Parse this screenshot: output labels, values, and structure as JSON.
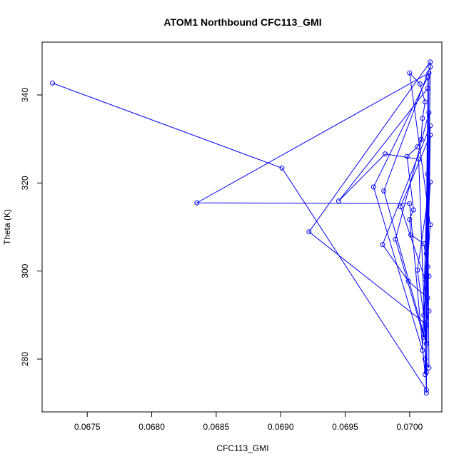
{
  "chart_data": {
    "type": "scatter",
    "title": "ATOM1 Northbound CFC113_GMI",
    "xlabel": "CFC113_GMI",
    "ylabel": "Theta (K)",
    "xlim": [
      0.06715,
      0.07025
    ],
    "ylim": [
      268,
      352
    ],
    "xticks": [
      0.0675,
      0.068,
      0.0685,
      0.069,
      0.0695,
      0.07
    ],
    "xtick_labels": [
      "0.0675",
      "0.0680",
      "0.0685",
      "0.0690",
      "0.0695",
      "0.0700"
    ],
    "yticks": [
      280,
      300,
      320,
      340
    ],
    "ytick_labels": [
      "280",
      "300",
      "320",
      "340"
    ],
    "grid": false,
    "series": [
      {
        "color": "#0000ff",
        "marker": "open-circle",
        "lines": true,
        "points": [
          [
            0.06723,
            342.7
          ],
          [
            0.06901,
            323.4
          ],
          [
            0.07013,
            273.0
          ],
          [
            0.07015,
            345.0
          ],
          [
            0.06835,
            315.5
          ],
          [
            0.07,
            315.3
          ],
          [
            0.07012,
            276.5
          ],
          [
            0.07014,
            341.5
          ],
          [
            0.06945,
            315.9
          ],
          [
            0.06981,
            326.6
          ],
          [
            0.07007,
            325.4
          ],
          [
            0.07013,
            277.0
          ],
          [
            0.07016,
            347.5
          ],
          [
            0.06922,
            308.9
          ],
          [
            0.07012,
            288.1
          ],
          [
            0.07013,
            272.3
          ],
          [
            0.07016,
            346.4
          ],
          [
            0.0698,
            318.2
          ],
          [
            0.07013,
            283.5
          ],
          [
            0.07014,
            344.0
          ],
          [
            0.06972,
            319.1
          ],
          [
            0.0701,
            282.0
          ],
          [
            0.07015,
            336.0
          ],
          [
            0.06989,
            307.2
          ],
          [
            0.07011,
            285.0
          ],
          [
            0.07016,
            333.0
          ],
          [
            0.06979,
            306.0
          ],
          [
            0.06999,
            297.7
          ],
          [
            0.07014,
            293.9
          ],
          [
            0.07016,
            330.9
          ],
          [
            0.06993,
            314.6
          ],
          [
            0.07012,
            298.1
          ],
          [
            0.07016,
            320.2
          ],
          [
            0.07006,
            300.2
          ],
          [
            0.07011,
            290.0
          ],
          [
            0.07016,
            310.5
          ],
          [
            0.07,
            345.0
          ],
          [
            0.07008,
            342.5
          ],
          [
            0.07012,
            338.4
          ],
          [
            0.0701,
            334.7
          ],
          [
            0.07009,
            329.9
          ],
          [
            0.07006,
            328.2
          ],
          [
            0.06998,
            326.0
          ],
          [
            0.07003,
            313.9
          ],
          [
            0.07,
            311.7
          ],
          [
            0.07001,
            308.2
          ],
          [
            0.07011,
            306.2
          ],
          [
            0.07015,
            298.8
          ],
          [
            0.07013,
            296.1
          ],
          [
            0.07015,
            290.9
          ],
          [
            0.07013,
            287.7
          ],
          [
            0.07012,
            280.0
          ],
          [
            0.07015,
            278.0
          ],
          [
            0.07014,
            322.0
          ],
          [
            0.07014,
            301.0
          ],
          [
            0.07013,
            304.0
          ]
        ]
      }
    ]
  }
}
